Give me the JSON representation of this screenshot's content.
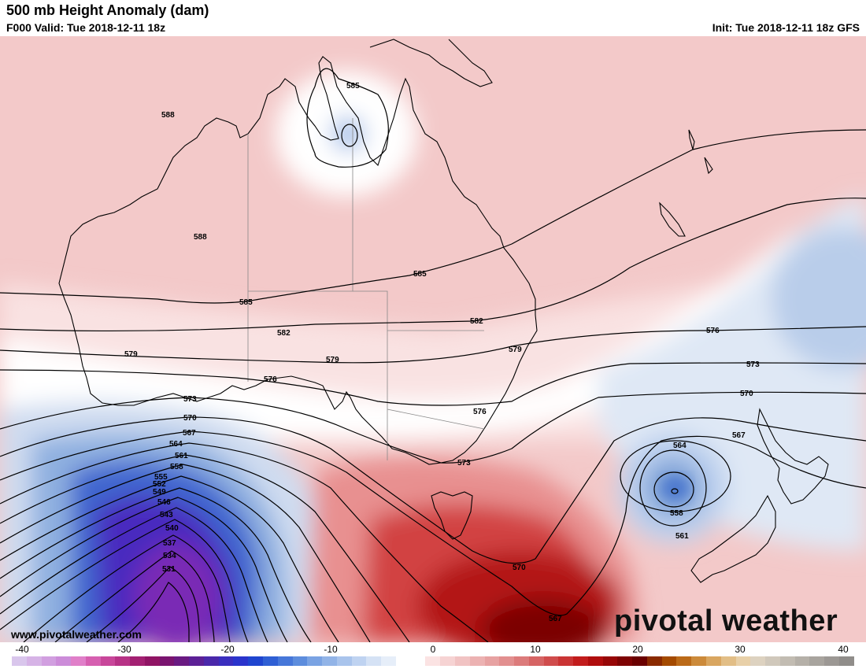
{
  "header": {
    "title": "500 mb Height Anomaly (dam)",
    "valid": "F000 Valid: Tue 2018-12-11 18z",
    "init": "Init: Tue 2018-12-11 18z GFS"
  },
  "footer": {
    "url": "www.pivotalweather.com",
    "brand": "pivotal weather"
  },
  "colorbar": {
    "ticks": [
      "-40",
      "-30",
      "-20",
      "-10",
      "0",
      "10",
      "20",
      "30",
      "40"
    ],
    "colors": [
      "#d9c6ec",
      "#d6b3e6",
      "#d19fe0",
      "#cc8cd9",
      "#e07fc9",
      "#d65fb0",
      "#c8469a",
      "#b73286",
      "#a32072",
      "#901464",
      "#7a1470",
      "#6a1a82",
      "#5c2096",
      "#4a28aa",
      "#3a2ebe",
      "#2a34cc",
      "#1f45cf",
      "#2f5fd4",
      "#4677d9",
      "#5d8ddd",
      "#7aa3e3",
      "#92b4e7",
      "#a9c4ec",
      "#bfd3f1",
      "#d5e2f5",
      "#e6eef9",
      "#ffffff",
      "#ffffff",
      "#fbe3e3",
      "#f6d3d3",
      "#f1c3c3",
      "#ecb2b2",
      "#e7a2a2",
      "#e28f8f",
      "#dc7b7b",
      "#d66464",
      "#d04c4c",
      "#ca3434",
      "#c21c1c",
      "#b00d0d",
      "#970707",
      "#7e0303",
      "#6a0000",
      "#8a2a00",
      "#a44a00",
      "#bb6a18",
      "#cc8a3a",
      "#d9a660",
      "#e2be86",
      "#e8d0a8",
      "#ddd2c0",
      "#d0c8bb",
      "#c2bcb2",
      "#b5b0a8",
      "#a8a49e",
      "#9c9894",
      "#908d8a"
    ]
  },
  "contours": [
    "588",
    "588",
    "585",
    "585",
    "585",
    "582",
    "582",
    "579",
    "579",
    "579",
    "576",
    "576",
    "576",
    "573",
    "573",
    "573",
    "570",
    "570",
    "570",
    "567",
    "567",
    "567",
    "564",
    "564",
    "561",
    "561",
    "558",
    "558",
    "555",
    "552",
    "549",
    "546",
    "543",
    "540",
    "537",
    "534",
    "531"
  ]
}
